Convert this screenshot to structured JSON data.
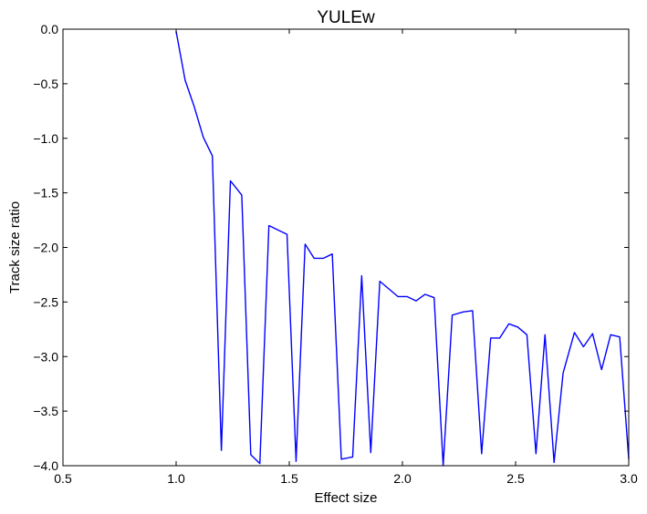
{
  "chart_data": {
    "type": "line",
    "title": "YULEw",
    "xlabel": "Effect size",
    "ylabel": "Track size ratio",
    "xlim": [
      0.5,
      3.0
    ],
    "ylim": [
      -4.0,
      0.0
    ],
    "xticks": [
      0.5,
      1.0,
      1.5,
      2.0,
      2.5,
      3.0
    ],
    "xtick_labels": [
      "0.5",
      "1.0",
      "1.5",
      "2.0",
      "2.5",
      "3.0"
    ],
    "yticks": [
      0.0,
      -0.5,
      -1.0,
      -1.5,
      -2.0,
      -2.5,
      -3.0,
      -3.5,
      -4.0
    ],
    "ytick_labels": [
      "0.0",
      "−0.5",
      "−1.0",
      "−1.5",
      "−2.0",
      "−2.5",
      "−3.0",
      "−3.5",
      "−4.0"
    ],
    "grid": false,
    "line_color": "#0000ff",
    "series": [
      {
        "x": [
          1.0,
          1.04,
          1.08,
          1.12,
          1.16,
          1.2,
          1.24,
          1.29,
          1.33,
          1.37,
          1.41,
          1.45,
          1.49,
          1.53,
          1.57,
          1.61,
          1.65,
          1.69,
          1.73,
          1.78,
          1.82,
          1.86,
          1.9,
          1.94,
          1.98,
          2.02,
          2.06,
          2.1,
          2.14,
          2.18,
          2.22,
          2.27,
          2.31,
          2.35,
          2.39,
          2.43,
          2.47,
          2.51,
          2.55,
          2.59,
          2.63,
          2.67,
          2.71,
          2.76,
          2.8,
          2.84,
          2.88,
          2.92,
          2.96,
          3.0
        ],
        "values": [
          -0.02,
          -0.47,
          -0.71,
          -0.99,
          -1.16,
          -3.86,
          -1.39,
          -1.52,
          -3.9,
          -3.98,
          -1.8,
          -1.84,
          -1.88,
          -3.96,
          -1.97,
          -2.1,
          -2.1,
          -2.06,
          -3.94,
          -3.92,
          -2.26,
          -3.88,
          -2.31,
          -2.38,
          -2.45,
          -2.45,
          -2.49,
          -2.43,
          -2.46,
          -4.0,
          -2.62,
          -2.59,
          -2.58,
          -3.89,
          -2.83,
          -2.83,
          -2.7,
          -2.73,
          -2.8,
          -3.89,
          -2.8,
          -3.97,
          -3.15,
          -2.78,
          -2.91,
          -2.79,
          -3.12,
          -2.8,
          -2.82,
          -3.94
        ]
      }
    ]
  }
}
